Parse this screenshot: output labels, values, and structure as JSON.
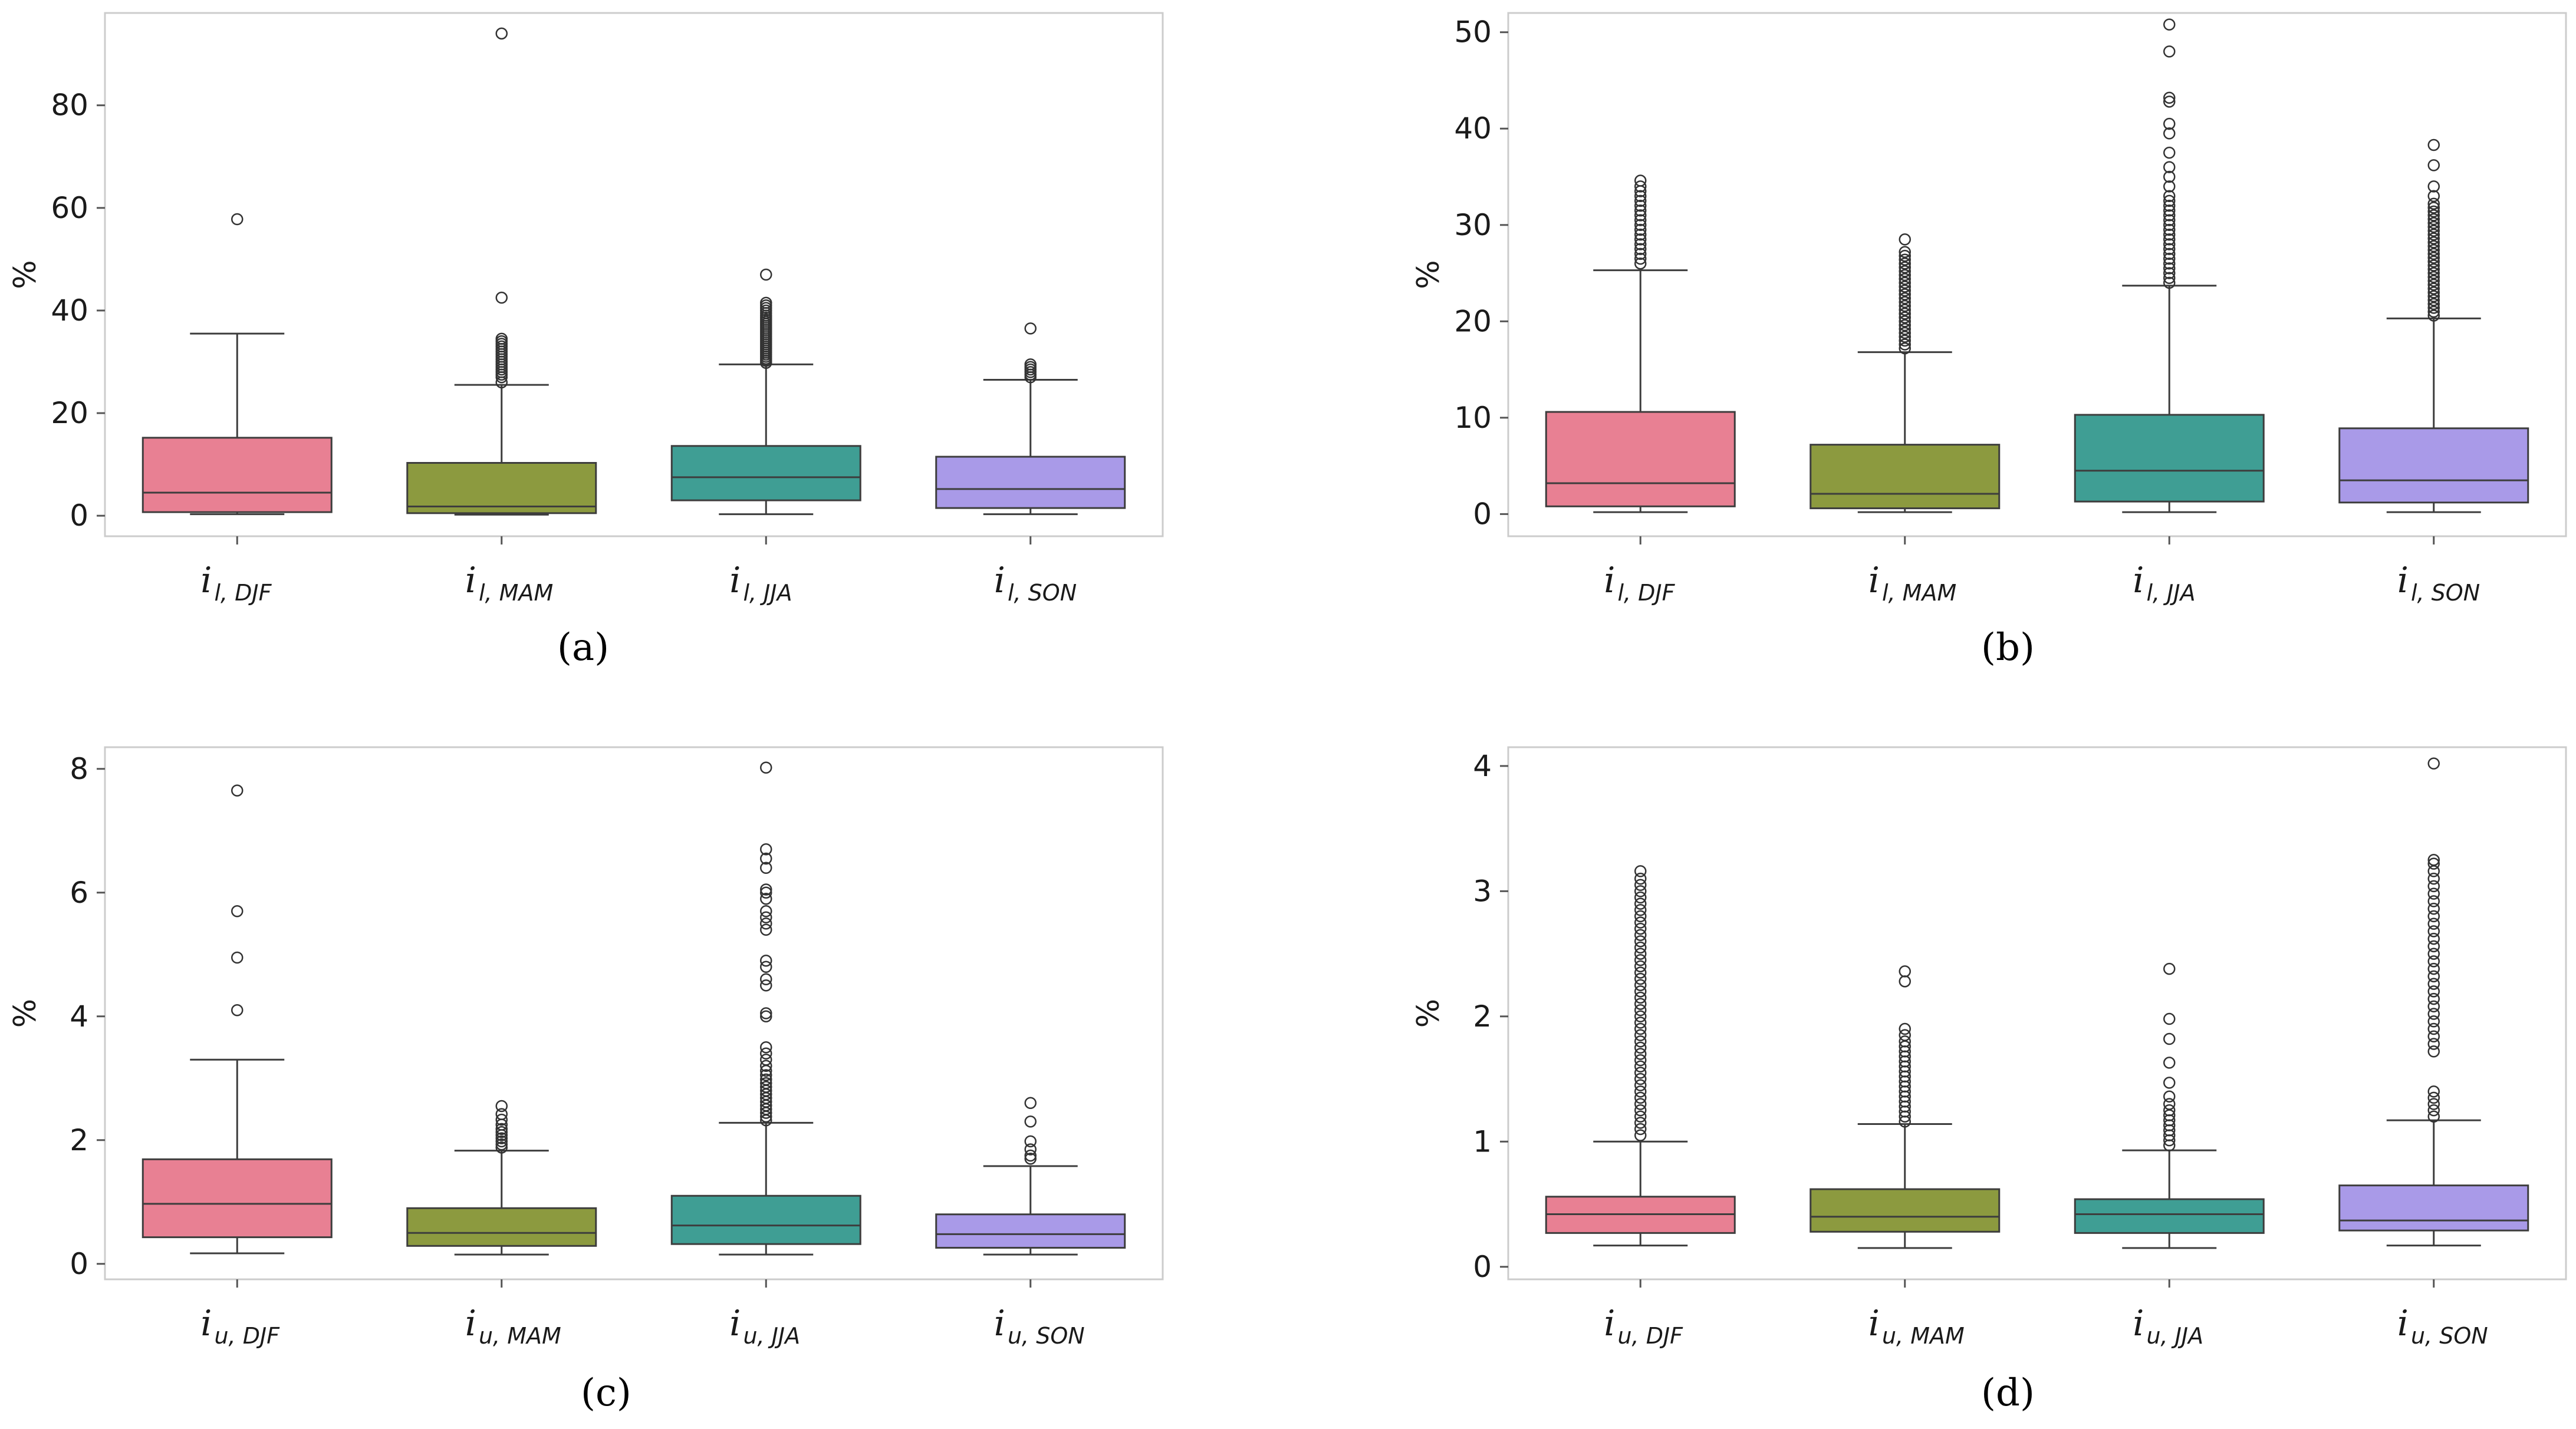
{
  "chart_data": [
    {
      "id": "a",
      "type": "box",
      "panel_label": "(a)",
      "ylabel": "%",
      "ylim": [
        -4,
        98
      ],
      "yticks": [
        0,
        20,
        40,
        60,
        80
      ],
      "categories": [
        {
          "main": "i",
          "sub": "l, DJF"
        },
        {
          "main": "i",
          "sub": "l, MAM"
        },
        {
          "main": "i",
          "sub": "l, JJA"
        },
        {
          "main": "i",
          "sub": "l, SON"
        }
      ],
      "colors": [
        "#e88093",
        "#8c9a3f",
        "#3f9e94",
        "#a99ae8"
      ],
      "boxes": [
        {
          "whislo": 0.3,
          "q1": 0.7,
          "med": 4.5,
          "q3": 15.2,
          "whishi": 35.5,
          "fliers": [
            57.8
          ]
        },
        {
          "whislo": 0.2,
          "q1": 0.5,
          "med": 1.8,
          "q3": 10.3,
          "whishi": 25.5,
          "fliers": [
            26,
            27,
            27.5,
            28,
            28.5,
            29,
            29.5,
            30,
            30.5,
            31,
            31.5,
            32,
            32.5,
            33,
            33.5,
            34,
            34.5,
            42.5,
            94
          ]
        },
        {
          "whislo": 0.3,
          "q1": 3,
          "med": 7.5,
          "q3": 13.6,
          "whishi": 29.5,
          "fliers": [
            29.8,
            30.2,
            30.6,
            31,
            31.4,
            31.8,
            32.2,
            32.6,
            33,
            33.4,
            33.8,
            34.2,
            34.6,
            35,
            35.4,
            35.8,
            36.2,
            36.6,
            37,
            37.4,
            37.8,
            38.2,
            38.6,
            39,
            39.5,
            40,
            40.5,
            41,
            41.5,
            47
          ]
        },
        {
          "whislo": 0.3,
          "q1": 1.5,
          "med": 5.2,
          "q3": 11.5,
          "whishi": 26.5,
          "fliers": [
            27,
            27.5,
            28,
            28.5,
            29,
            29.5,
            36.5
          ]
        }
      ]
    },
    {
      "id": "b",
      "type": "box",
      "panel_label": "(b)",
      "ylabel": "%",
      "ylim": [
        -2.3,
        52
      ],
      "yticks": [
        0,
        10,
        20,
        30,
        40,
        50
      ],
      "categories": [
        {
          "main": "i",
          "sub": "l, DJF"
        },
        {
          "main": "i",
          "sub": "l, MAM"
        },
        {
          "main": "i",
          "sub": "l, JJA"
        },
        {
          "main": "i",
          "sub": "l, SON"
        }
      ],
      "colors": [
        "#e88093",
        "#8c9a3f",
        "#3f9e94",
        "#a99ae8"
      ],
      "boxes": [
        {
          "whislo": 0.2,
          "q1": 0.8,
          "med": 3.2,
          "q3": 10.6,
          "whishi": 25.3,
          "fliers": [
            26,
            26.5,
            27,
            27.5,
            28,
            28.5,
            29,
            29.5,
            30,
            30.5,
            31,
            31.5,
            32,
            32.5,
            33,
            33.5,
            34,
            34.6
          ]
        },
        {
          "whislo": 0.2,
          "q1": 0.6,
          "med": 2.1,
          "q3": 7.2,
          "whishi": 16.8,
          "fliers": [
            17.2,
            17.6,
            18,
            18.4,
            18.8,
            19.2,
            19.6,
            20,
            20.4,
            20.8,
            21.2,
            21.6,
            22,
            22.4,
            22.8,
            23.2,
            23.6,
            24,
            24.4,
            24.8,
            25.2,
            25.6,
            26,
            26.4,
            26.8,
            27.2,
            28.5
          ]
        },
        {
          "whislo": 0.2,
          "q1": 1.3,
          "med": 4.5,
          "q3": 10.3,
          "whishi": 23.7,
          "fliers": [
            24,
            24.5,
            25,
            25.5,
            26,
            26.5,
            27,
            27.5,
            28,
            28.5,
            29,
            29.5,
            30,
            30.5,
            31,
            31.5,
            32,
            32.5,
            33,
            34,
            35,
            36,
            37.5,
            39.5,
            40.5,
            42.8,
            43.2,
            48,
            50.8
          ]
        },
        {
          "whislo": 0.2,
          "q1": 1.2,
          "med": 3.5,
          "q3": 8.9,
          "whishi": 20.3,
          "fliers": [
            20.6,
            21,
            21.4,
            21.8,
            22.2,
            22.6,
            23,
            23.4,
            23.8,
            24.2,
            24.6,
            25,
            25.4,
            25.8,
            26.2,
            26.6,
            27,
            27.4,
            27.8,
            28.2,
            28.6,
            29,
            29.4,
            29.8,
            30.2,
            30.6,
            31,
            31.4,
            31.8,
            32.2,
            33,
            34,
            36.2,
            38.3
          ]
        }
      ]
    },
    {
      "id": "c",
      "type": "box",
      "panel_label": "(c)",
      "ylabel": "%",
      "ylim": [
        -0.25,
        8.35
      ],
      "yticks": [
        0,
        2,
        4,
        6,
        8
      ],
      "categories": [
        {
          "main": "i",
          "sub": "u, DJF"
        },
        {
          "main": "i",
          "sub": "u, MAM"
        },
        {
          "main": "i",
          "sub": "u, JJA"
        },
        {
          "main": "i",
          "sub": "u, SON"
        }
      ],
      "colors": [
        "#e88093",
        "#8c9a3f",
        "#3f9e94",
        "#a99ae8"
      ],
      "boxes": [
        {
          "whislo": 0.17,
          "q1": 0.43,
          "med": 0.97,
          "q3": 1.69,
          "whishi": 3.3,
          "fliers": [
            4.1,
            4.95,
            5.7,
            7.65
          ]
        },
        {
          "whislo": 0.15,
          "q1": 0.29,
          "med": 0.5,
          "q3": 0.9,
          "whishi": 1.83,
          "fliers": [
            1.88,
            1.93,
            1.98,
            2.03,
            2.08,
            2.13,
            2.18,
            2.25,
            2.33,
            2.42,
            2.55
          ]
        },
        {
          "whislo": 0.15,
          "q1": 0.32,
          "med": 0.62,
          "q3": 1.1,
          "whishi": 2.28,
          "fliers": [
            2.32,
            2.38,
            2.44,
            2.5,
            2.56,
            2.62,
            2.68,
            2.74,
            2.8,
            2.86,
            2.92,
            2.98,
            3.05,
            3.12,
            3.2,
            3.3,
            3.4,
            3.5,
            4,
            4.05,
            4.5,
            4.6,
            4.8,
            4.9,
            5.4,
            5.5,
            5.6,
            5.7,
            5.9,
            6,
            6.05,
            6.4,
            6.55,
            6.7,
            8.02
          ]
        },
        {
          "whislo": 0.15,
          "q1": 0.26,
          "med": 0.48,
          "q3": 0.8,
          "whishi": 1.58,
          "fliers": [
            1.7,
            1.75,
            1.85,
            1.98,
            2.3,
            2.6
          ]
        }
      ]
    },
    {
      "id": "d",
      "type": "box",
      "panel_label": "(d)",
      "ylabel": "%",
      "ylim": [
        -0.1,
        4.15
      ],
      "yticks": [
        0,
        1,
        2,
        3,
        4
      ],
      "categories": [
        {
          "main": "i",
          "sub": "u, DJF"
        },
        {
          "main": "i",
          "sub": "u, MAM"
        },
        {
          "main": "i",
          "sub": "u, JJA"
        },
        {
          "main": "i",
          "sub": "u, SON"
        }
      ],
      "colors": [
        "#e88093",
        "#8c9a3f",
        "#3f9e94",
        "#a99ae8"
      ],
      "boxes": [
        {
          "whislo": 0.17,
          "q1": 0.27,
          "med": 0.42,
          "q3": 0.56,
          "whishi": 1,
          "fliers": [
            1.05,
            1.1,
            1.15,
            1.2,
            1.25,
            1.3,
            1.35,
            1.4,
            1.45,
            1.5,
            1.55,
            1.6,
            1.65,
            1.7,
            1.75,
            1.8,
            1.85,
            1.9,
            1.95,
            2,
            2.05,
            2.1,
            2.15,
            2.2,
            2.25,
            2.3,
            2.35,
            2.4,
            2.45,
            2.5,
            2.55,
            2.6,
            2.65,
            2.7,
            2.75,
            2.8,
            2.85,
            2.9,
            2.95,
            3,
            3.05,
            3.1,
            3.16
          ]
        },
        {
          "whislo": 0.15,
          "q1": 0.28,
          "med": 0.4,
          "q3": 0.62,
          "whishi": 1.14,
          "fliers": [
            1.16,
            1.2,
            1.24,
            1.28,
            1.32,
            1.36,
            1.4,
            1.44,
            1.48,
            1.52,
            1.56,
            1.6,
            1.64,
            1.68,
            1.72,
            1.76,
            1.8,
            1.85,
            1.9,
            2.28,
            2.36
          ]
        },
        {
          "whislo": 0.15,
          "q1": 0.27,
          "med": 0.42,
          "q3": 0.54,
          "whishi": 0.93,
          "fliers": [
            0.97,
            1.01,
            1.05,
            1.09,
            1.13,
            1.17,
            1.21,
            1.25,
            1.3,
            1.36,
            1.47,
            1.63,
            1.82,
            1.98,
            2.38
          ]
        },
        {
          "whislo": 0.17,
          "q1": 0.29,
          "med": 0.37,
          "q3": 0.65,
          "whishi": 1.17,
          "fliers": [
            1.2,
            1.25,
            1.3,
            1.35,
            1.4,
            1.72,
            1.78,
            1.84,
            1.9,
            1.96,
            2.02,
            2.08,
            2.14,
            2.2,
            2.26,
            2.32,
            2.38,
            2.44,
            2.5,
            2.56,
            2.62,
            2.68,
            2.74,
            2.8,
            2.86,
            2.92,
            2.98,
            3.04,
            3.1,
            3.16,
            3.22,
            3.25,
            4.02
          ]
        }
      ]
    }
  ]
}
